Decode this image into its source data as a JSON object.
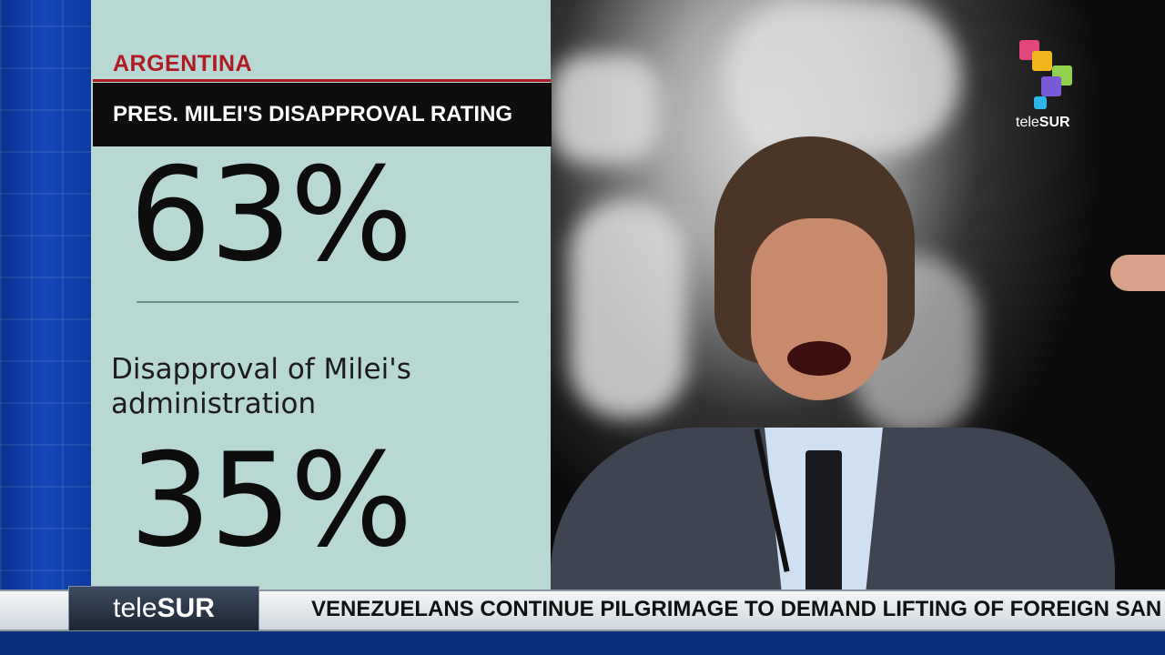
{
  "graphic": {
    "country": "ARGENTINA",
    "headline": "PRES. MILEI'S DISAPPROVAL RATING",
    "stat_primary": "63%",
    "description": "Disapproval of Milei's administration",
    "stat_secondary": "35%"
  },
  "logo": {
    "prefix": "tele",
    "suffix": "SUR",
    "colors": [
      "#e2467d",
      "#f2b51d",
      "#8fd14f",
      "#7a5ad8",
      "#2fb6e8"
    ]
  },
  "ticker": {
    "brand_prefix": "tele",
    "brand_suffix": "SUR",
    "text": "VENEZUELANS CONTINUE PILGRIMAGE TO DEMAND LIFTING OF FOREIGN SAN"
  },
  "colors": {
    "accent_red": "#b01a22",
    "panel": "#b8d8d4",
    "blue": "#1747b8"
  }
}
